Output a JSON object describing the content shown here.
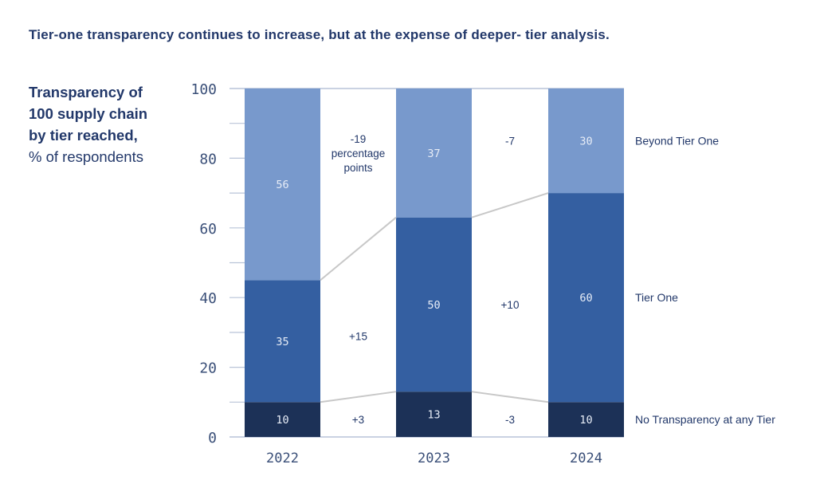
{
  "title": "Tier-one transparency continues to increase, but at the expense of deeper- tier analysis.",
  "subtitle": {
    "bold_lines": [
      "Transparency of",
      "100 supply chain",
      "by tier reached,"
    ],
    "normal_line": "% of respondents"
  },
  "chart_data": {
    "type": "bar",
    "stacked": true,
    "categories": [
      "2022",
      "2023",
      "2024"
    ],
    "ylim": [
      0,
      100
    ],
    "yticks": [
      0,
      20,
      40,
      60,
      80,
      100
    ],
    "series": [
      {
        "name": "No Transparency at any Tier",
        "values": [
          10,
          13,
          10
        ],
        "color": "#1c3157"
      },
      {
        "name": "Tier One",
        "values": [
          35,
          50,
          60
        ],
        "color": "#345fa1"
      },
      {
        "name": "Beyond Tier One",
        "values": [
          56,
          37,
          30
        ],
        "color": "#7899cc"
      }
    ],
    "change_labels": [
      {
        "series": "No Transparency at any Tier",
        "labels": [
          "+3",
          "-3"
        ]
      },
      {
        "series": "Tier One",
        "labels": [
          "+15",
          "+10"
        ]
      },
      {
        "series": "Beyond Tier One",
        "labels": [
          "-19\npercentage\npoints",
          "-7"
        ]
      }
    ],
    "legend_placement": "right"
  }
}
